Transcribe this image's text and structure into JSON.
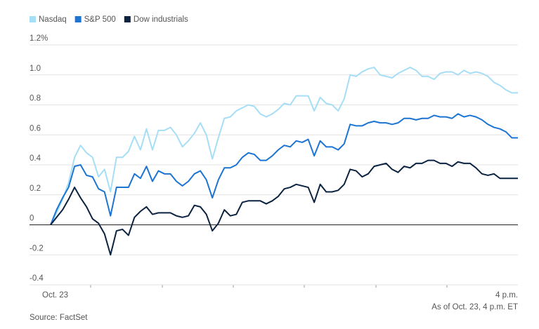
{
  "chart_data": {
    "type": "line",
    "categories": [
      "Oct. 23",
      null,
      null,
      null,
      null,
      null,
      null,
      null,
      null,
      null,
      null,
      null,
      null,
      null,
      null,
      null,
      null,
      null,
      null,
      null,
      null,
      null,
      null,
      null,
      null,
      null,
      null,
      null,
      null,
      null,
      null,
      null,
      null,
      null,
      null,
      null,
      null,
      null,
      null,
      null,
      null,
      null,
      null,
      null,
      null,
      null,
      null,
      null,
      null,
      null,
      null,
      null,
      null,
      null,
      null,
      null,
      null,
      null,
      null,
      null,
      null,
      null,
      null,
      null,
      null,
      null,
      null,
      null,
      null,
      null,
      null,
      null,
      null,
      null,
      null,
      null,
      null,
      null,
      "4 p.m."
    ],
    "series": [
      {
        "name": "Nasdaq",
        "color": "#a6def6",
        "values": [
          0,
          0.08,
          0.17,
          0.28,
          0.45,
          0.53,
          0.48,
          0.45,
          0.32,
          0.37,
          0.22,
          0.45,
          0.45,
          0.49,
          0.59,
          0.5,
          0.64,
          0.5,
          0.63,
          0.63,
          0.65,
          0.6,
          0.52,
          0.56,
          0.61,
          0.68,
          0.6,
          0.44,
          0.58,
          0.71,
          0.72,
          0.76,
          0.78,
          0.8,
          0.79,
          0.74,
          0.72,
          0.74,
          0.77,
          0.81,
          0.8,
          0.86,
          0.86,
          0.86,
          0.76,
          0.85,
          0.81,
          0.8,
          0.76,
          0.84,
          1.0,
          0.99,
          1.02,
          1.04,
          1.05,
          1.0,
          0.99,
          0.98,
          1.01,
          1.03,
          1.05,
          1.03,
          0.99,
          0.99,
          0.97,
          1.01,
          1.02,
          1.02,
          1.0,
          1.03,
          1.01,
          1.02,
          1.01,
          0.99,
          0.95,
          0.93,
          0.9,
          0.88,
          0.88
        ]
      },
      {
        "name": "S&P 500",
        "color": "#1c74d3",
        "values": [
          0,
          0.1,
          0.18,
          0.25,
          0.39,
          0.4,
          0.33,
          0.32,
          0.24,
          0.22,
          0.06,
          0.25,
          0.25,
          0.25,
          0.34,
          0.31,
          0.39,
          0.29,
          0.36,
          0.34,
          0.34,
          0.29,
          0.26,
          0.29,
          0.34,
          0.36,
          0.3,
          0.18,
          0.3,
          0.38,
          0.38,
          0.4,
          0.45,
          0.48,
          0.47,
          0.43,
          0.43,
          0.46,
          0.5,
          0.53,
          0.52,
          0.56,
          0.55,
          0.57,
          0.46,
          0.56,
          0.52,
          0.52,
          0.5,
          0.54,
          0.67,
          0.66,
          0.66,
          0.68,
          0.69,
          0.68,
          0.68,
          0.67,
          0.68,
          0.71,
          0.71,
          0.7,
          0.71,
          0.71,
          0.73,
          0.72,
          0.72,
          0.71,
          0.74,
          0.72,
          0.73,
          0.72,
          0.7,
          0.67,
          0.65,
          0.64,
          0.62,
          0.58,
          0.58
        ]
      },
      {
        "name": "Dow industrials",
        "color": "#0b2341",
        "values": [
          0,
          0.05,
          0.1,
          0.17,
          0.25,
          0.18,
          0.12,
          0.04,
          0.01,
          -0.06,
          -0.2,
          -0.04,
          -0.03,
          -0.07,
          0.05,
          0.09,
          0.12,
          0.07,
          0.08,
          0.08,
          0.08,
          0.06,
          0.05,
          0.06,
          0.13,
          0.12,
          0.07,
          -0.04,
          0.01,
          0.1,
          0.06,
          0.07,
          0.15,
          0.16,
          0.16,
          0.16,
          0.14,
          0.16,
          0.19,
          0.24,
          0.25,
          0.27,
          0.26,
          0.25,
          0.15,
          0.27,
          0.22,
          0.22,
          0.23,
          0.27,
          0.37,
          0.36,
          0.32,
          0.34,
          0.39,
          0.4,
          0.41,
          0.37,
          0.35,
          0.39,
          0.38,
          0.41,
          0.41,
          0.43,
          0.43,
          0.41,
          0.41,
          0.39,
          0.42,
          0.41,
          0.41,
          0.38,
          0.34,
          0.33,
          0.34,
          0.31,
          0.31,
          0.31,
          0.31
        ]
      }
    ],
    "ylim": [
      -0.4,
      1.2
    ],
    "yticks": [
      -0.4,
      -0.2,
      0,
      0.2,
      0.4,
      0.6,
      0.8,
      {
        "value": 1,
        "label": "1.0"
      },
      {
        "value": 1.2,
        "label": "1.2%"
      }
    ],
    "grid": true,
    "note": "As of Oct. 23, 4 p.m. ET",
    "source": "Source: FactSet"
  }
}
